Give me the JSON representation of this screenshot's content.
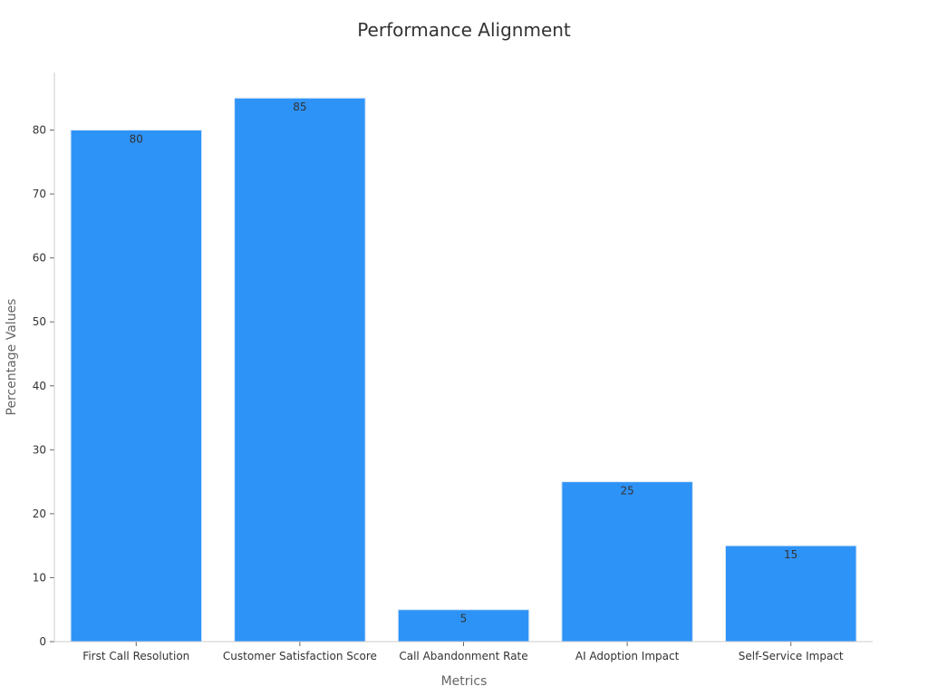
{
  "chart_data": {
    "type": "bar",
    "title": "Performance Alignment",
    "xlabel": "Metrics",
    "ylabel": "Percentage Values",
    "categories": [
      "First Call Resolution",
      "Customer Satisfaction Score",
      "Call Abandonment Rate",
      "AI Adoption Impact",
      "Self-Service Impact"
    ],
    "values": [
      80,
      85,
      5,
      25,
      15
    ],
    "ylim": [
      0,
      89
    ],
    "yticks": [
      0,
      10,
      20,
      30,
      40,
      50,
      60,
      70,
      80
    ],
    "grid": false,
    "bar_color": "#2e93f7",
    "bar_edge_color": "#d8e8f8"
  }
}
